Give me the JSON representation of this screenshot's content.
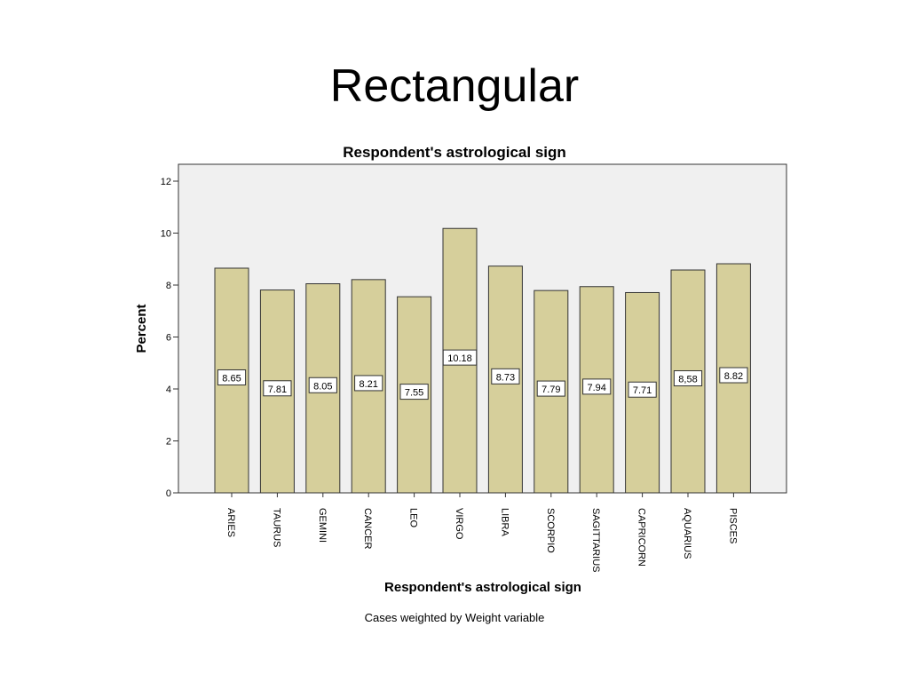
{
  "slide": {
    "title": "Rectangular"
  },
  "colors": {
    "bar_fill": "#d6cf9b",
    "bar_stroke": "#333333",
    "plot_bg": "#f0f0f0",
    "frame": "#333333"
  },
  "chart_data": {
    "type": "bar",
    "title": "Respondent's astrological sign",
    "xlabel": "Respondent's astrological sign",
    "ylabel": "Percent",
    "ylim": [
      0,
      12
    ],
    "yticks": [
      0,
      2,
      4,
      6,
      8,
      10,
      12
    ],
    "categories": [
      "ARIES",
      "TAURUS",
      "GEMINI",
      "CANCER",
      "LEO",
      "VIRGO",
      "LIBRA",
      "SCORPIO",
      "SAGITTARIUS",
      "CAPRICORN",
      "AQUARIUS",
      "PISCES"
    ],
    "values": [
      8.65,
      7.81,
      8.05,
      8.21,
      7.55,
      10.18,
      8.73,
      7.79,
      7.94,
      7.71,
      8.58,
      8.82
    ],
    "value_labels": [
      "8.65",
      "7.81",
      "8.05",
      "8.21",
      "7.55",
      "10.18",
      "8.73",
      "7.79",
      "7.94",
      "7.71",
      "8,58",
      "8.82"
    ],
    "grid": false,
    "footnote": "Cases weighted by Weight variable"
  }
}
